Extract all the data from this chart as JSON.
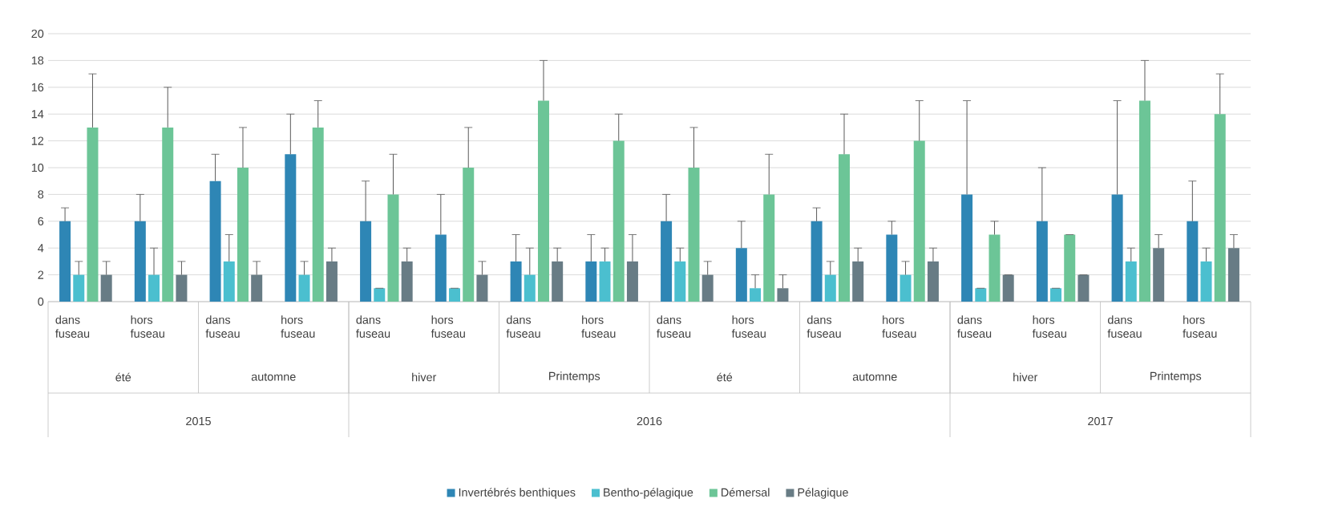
{
  "chart_data": {
    "type": "bar",
    "categories": [
      "dans fuseau",
      "hors fuseau",
      "dans fuseau",
      "hors fuseau",
      "dans fuseau",
      "hors fuseau",
      "dans fuseau",
      "hors fuseau",
      "dans fuseau",
      "hors fuseau",
      "dans fuseau",
      "hors fuseau",
      "dans fuseau",
      "hors fuseau",
      "dans fuseau",
      "hors fuseau"
    ],
    "series": [
      {
        "name": "Invertébrés benthiques",
        "color": "#2e86b5",
        "values": [
          6,
          6,
          9,
          11,
          6,
          5,
          3,
          3,
          6,
          4,
          6,
          5,
          8,
          6,
          8,
          6
        ],
        "errors": [
          [
            6,
            7
          ],
          [
            6,
            8
          ],
          [
            9,
            11
          ],
          [
            11,
            14
          ],
          [
            6,
            9
          ],
          [
            5,
            8
          ],
          [
            3,
            5
          ],
          [
            3,
            5
          ],
          [
            6,
            8
          ],
          [
            4,
            6
          ],
          [
            6,
            7
          ],
          [
            5,
            6
          ],
          [
            8,
            15
          ],
          [
            6,
            10
          ],
          [
            8,
            15
          ],
          [
            6,
            9
          ]
        ]
      },
      {
        "name": "Bentho-pélagique",
        "color": "#4bbfcf",
        "values": [
          2,
          2,
          3,
          2,
          1,
          1,
          2,
          3,
          3,
          1,
          2,
          2,
          1,
          1,
          3,
          3
        ],
        "errors": [
          [
            2,
            3
          ],
          [
            2,
            4
          ],
          [
            3,
            5
          ],
          [
            2,
            3
          ],
          [
            1,
            1
          ],
          [
            1,
            1
          ],
          [
            2,
            4
          ],
          [
            3,
            4
          ],
          [
            3,
            4
          ],
          [
            1,
            2
          ],
          [
            2,
            3
          ],
          [
            2,
            3
          ],
          [
            1,
            1
          ],
          [
            1,
            1
          ],
          [
            3,
            4
          ],
          [
            3,
            4
          ]
        ]
      },
      {
        "name": "Démersal",
        "color": "#6cc597",
        "values": [
          13,
          13,
          10,
          13,
          8,
          10,
          15,
          12,
          10,
          8,
          11,
          12,
          5,
          5,
          15,
          14
        ],
        "errors": [
          [
            13,
            17
          ],
          [
            13,
            16
          ],
          [
            10,
            13
          ],
          [
            13,
            15
          ],
          [
            8,
            11
          ],
          [
            10,
            13
          ],
          [
            15,
            18
          ],
          [
            12,
            14
          ],
          [
            10,
            13
          ],
          [
            8,
            11
          ],
          [
            11,
            14
          ],
          [
            12,
            15
          ],
          [
            5,
            6
          ],
          [
            5,
            5
          ],
          [
            15,
            18
          ],
          [
            14,
            17
          ]
        ]
      },
      {
        "name": "Pélagique",
        "color": "#687c85",
        "values": [
          2,
          2,
          2,
          3,
          3,
          2,
          3,
          3,
          2,
          1,
          3,
          3,
          2,
          2,
          4,
          4
        ],
        "errors": [
          [
            2,
            3
          ],
          [
            2,
            3
          ],
          [
            2,
            3
          ],
          [
            3,
            4
          ],
          [
            3,
            4
          ],
          [
            2,
            3
          ],
          [
            3,
            4
          ],
          [
            3,
            5
          ],
          [
            2,
            3
          ],
          [
            1,
            2
          ],
          [
            3,
            4
          ],
          [
            3,
            4
          ],
          [
            2,
            2
          ],
          [
            2,
            2
          ],
          [
            4,
            5
          ],
          [
            4,
            5
          ]
        ]
      }
    ],
    "ylim": [
      0,
      20
    ],
    "yticks": [
      0,
      2,
      4,
      6,
      8,
      10,
      12,
      14,
      16,
      18,
      20
    ],
    "grid": "y",
    "legend": "bottom",
    "annotations": [
      "été",
      "automne",
      "hiver",
      "Printemps",
      "été",
      "automne",
      "hiver",
      "Printemps",
      "2015",
      "2016",
      "2017"
    ]
  }
}
